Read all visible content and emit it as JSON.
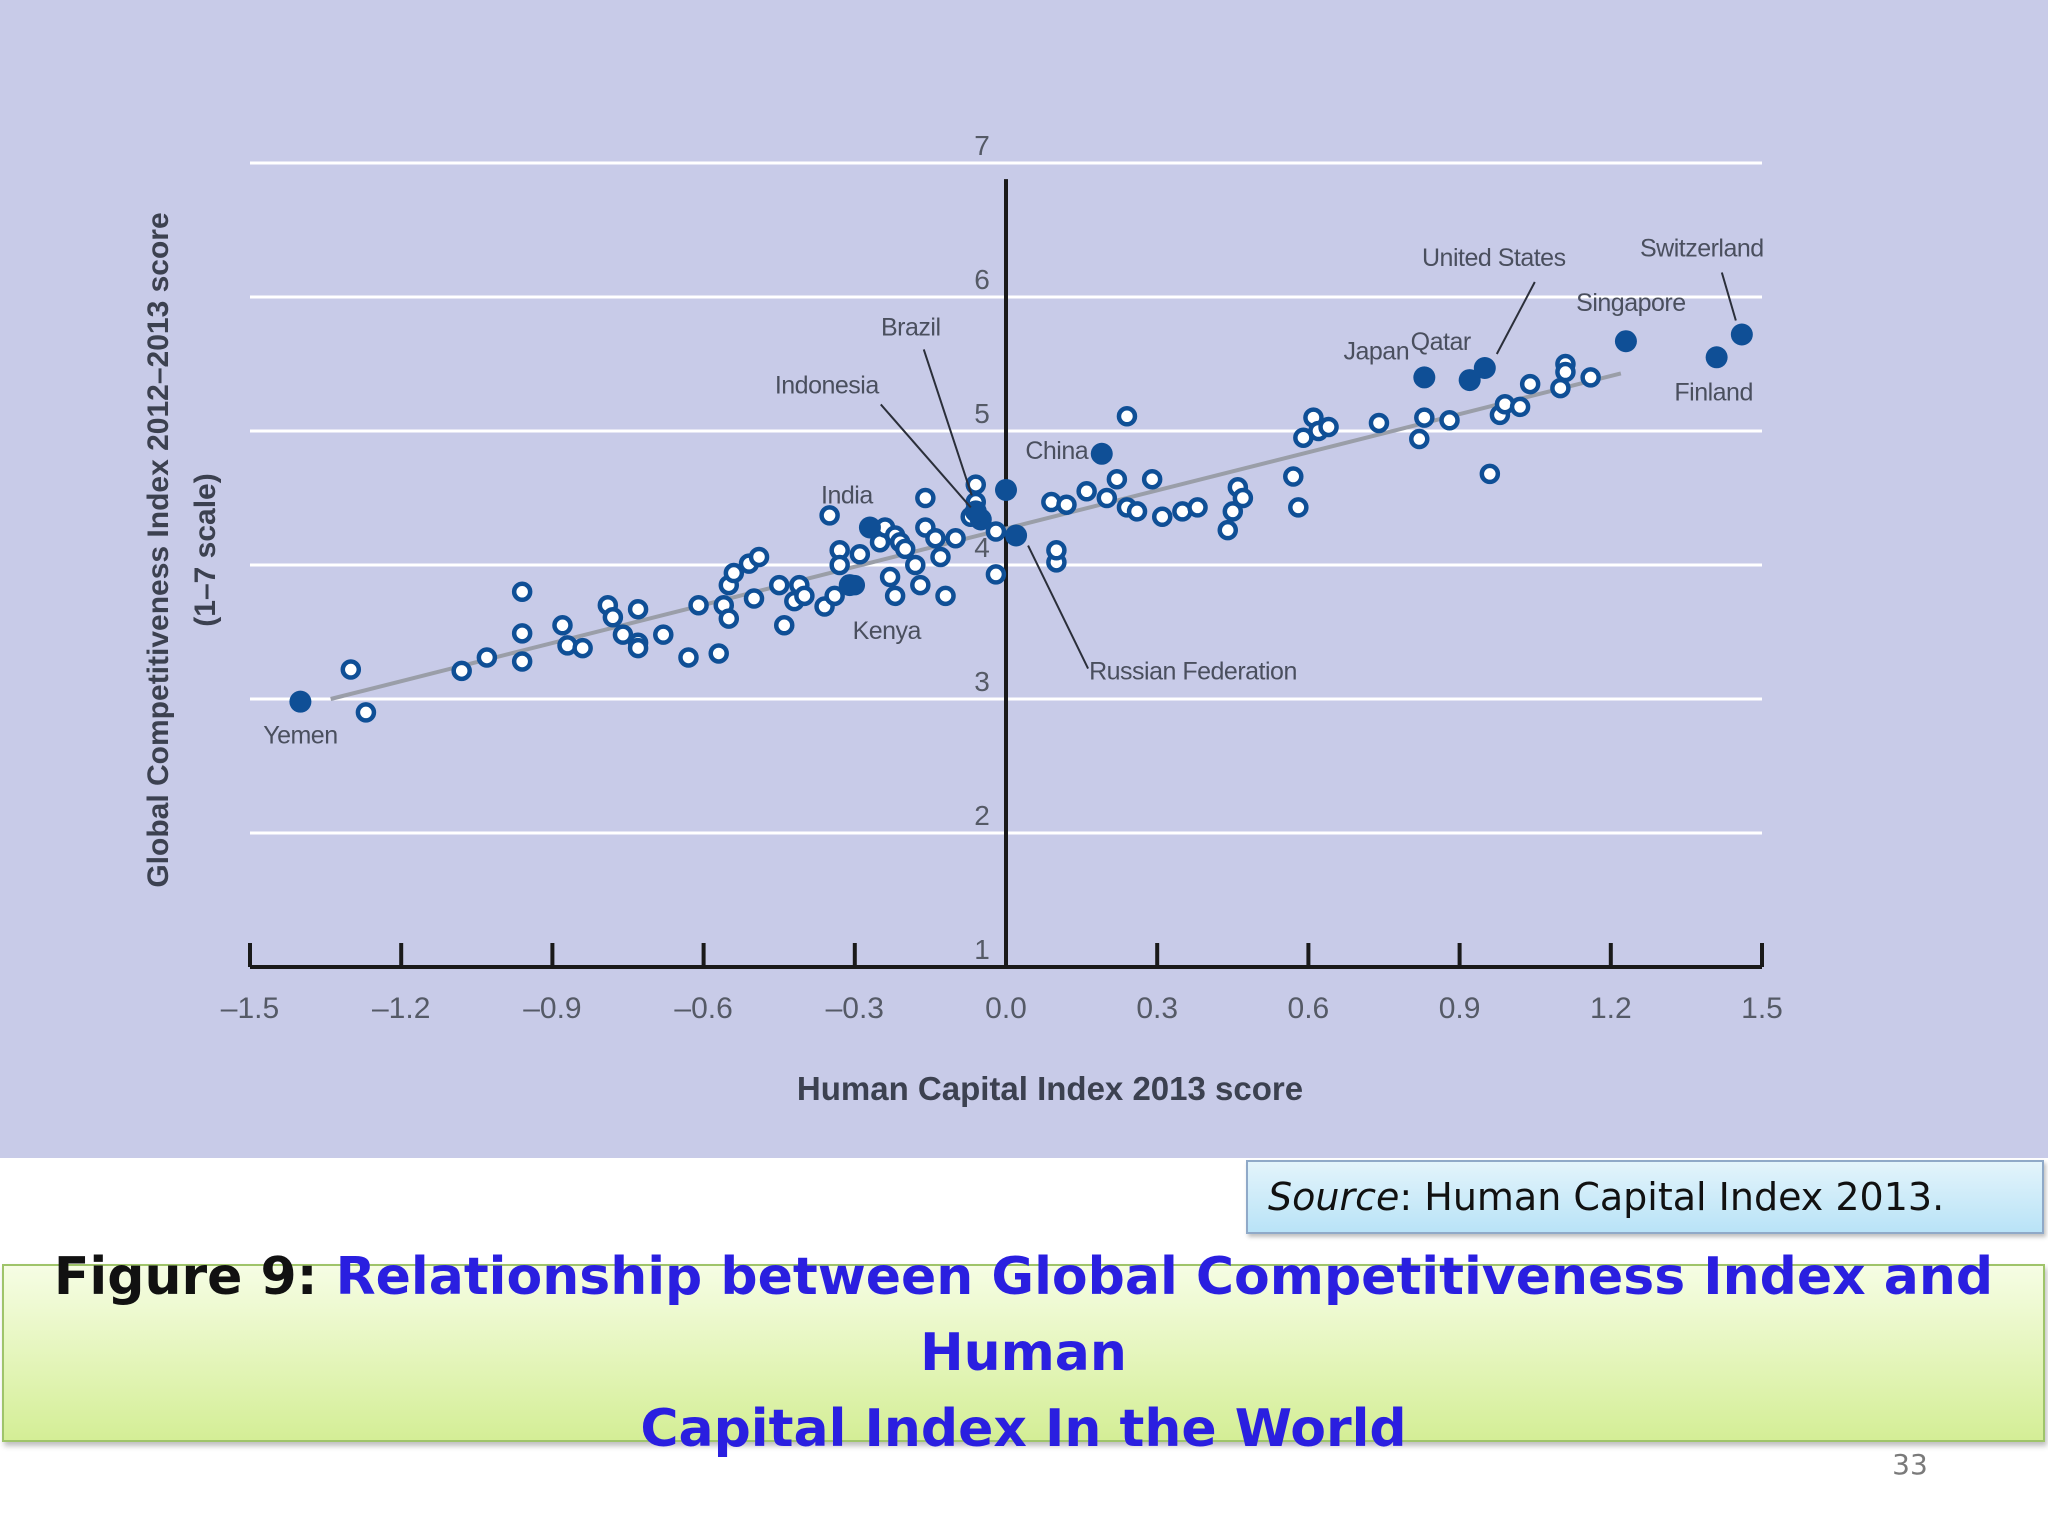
{
  "chart_data": {
    "type": "scatter",
    "title": "",
    "xlabel": "Human Capital Index 2013 score",
    "ylabel": "Global Competitiveness Index 2012–2013 score",
    "ylabel_sub": "(1–7 scale)",
    "xlim": [
      -1.5,
      1.5
    ],
    "ylim": [
      1,
      7
    ],
    "x_ticks": [
      "–1.5",
      "–1.2",
      "–0.9",
      "–0.6",
      "–0.3",
      "0.0",
      "0.3",
      "0.6",
      "0.9",
      "1.2",
      "1.5"
    ],
    "y_ticks": [
      "1",
      "2",
      "3",
      "4",
      "5",
      "6",
      "7"
    ],
    "grid": true,
    "trend_line": {
      "from": [
        -1.34,
        3.0
      ],
      "to": [
        1.22,
        5.43
      ]
    },
    "highlighted": [
      {
        "name": "Yemen",
        "x": -1.4,
        "y": 2.98
      },
      {
        "name": "India",
        "x": -0.27,
        "y": 4.28
      },
      {
        "name": "Kenya",
        "x": -0.31,
        "y": 3.85
      },
      {
        "name": "Indonesia",
        "x": -0.05,
        "y": 4.34
      },
      {
        "name": "Brazil",
        "x": -0.06,
        "y": 4.4
      },
      {
        "name": "Russian Federation",
        "x": 0.02,
        "y": 4.22
      },
      {
        "name": "",
        "x": 0.0,
        "y": 4.56
      },
      {
        "name": "China",
        "x": 0.19,
        "y": 4.83
      },
      {
        "name": "Japan",
        "x": 0.83,
        "y": 5.4
      },
      {
        "name": "Qatar",
        "x": 0.92,
        "y": 5.38
      },
      {
        "name": "United States",
        "x": 0.95,
        "y": 5.47
      },
      {
        "name": "Singapore",
        "x": 1.23,
        "y": 5.67
      },
      {
        "name": "Finland",
        "x": 1.41,
        "y": 5.55
      },
      {
        "name": "Switzerland",
        "x": 1.46,
        "y": 5.72
      }
    ],
    "others": [
      [
        -1.3,
        3.22
      ],
      [
        -1.27,
        2.9
      ],
      [
        -1.08,
        3.21
      ],
      [
        -1.03,
        3.31
      ],
      [
        -0.96,
        3.8
      ],
      [
        -0.96,
        3.49
      ],
      [
        -0.96,
        3.28
      ],
      [
        -0.88,
        3.55
      ],
      [
        -0.87,
        3.4
      ],
      [
        -0.84,
        3.38
      ],
      [
        -0.79,
        3.7
      ],
      [
        -0.78,
        3.61
      ],
      [
        -0.76,
        3.48
      ],
      [
        -0.73,
        3.67
      ],
      [
        -0.73,
        3.42
      ],
      [
        -0.73,
        3.38
      ],
      [
        -0.68,
        3.48
      ],
      [
        -0.63,
        3.31
      ],
      [
        -0.61,
        3.7
      ],
      [
        -0.57,
        3.34
      ],
      [
        -0.56,
        3.7
      ],
      [
        -0.55,
        3.85
      ],
      [
        -0.55,
        3.6
      ],
      [
        -0.54,
        3.94
      ],
      [
        -0.51,
        4.01
      ],
      [
        -0.5,
        3.75
      ],
      [
        -0.49,
        4.06
      ],
      [
        -0.45,
        3.85
      ],
      [
        -0.44,
        3.55
      ],
      [
        -0.42,
        3.73
      ],
      [
        -0.41,
        3.85
      ],
      [
        -0.4,
        3.77
      ],
      [
        -0.36,
        3.69
      ],
      [
        -0.35,
        4.37
      ],
      [
        -0.34,
        3.77
      ],
      [
        -0.33,
        4.11
      ],
      [
        -0.33,
        4.0
      ],
      [
        -0.3,
        3.85
      ],
      [
        -0.29,
        4.08
      ],
      [
        -0.25,
        4.17
      ],
      [
        -0.24,
        4.28
      ],
      [
        -0.23,
        3.91
      ],
      [
        -0.22,
        4.22
      ],
      [
        -0.21,
        4.17
      ],
      [
        -0.22,
        3.77
      ],
      [
        -0.2,
        4.12
      ],
      [
        -0.18,
        4.0
      ],
      [
        -0.17,
        3.85
      ],
      [
        -0.16,
        4.28
      ],
      [
        -0.16,
        4.5
      ],
      [
        -0.14,
        4.2
      ],
      [
        -0.13,
        4.06
      ],
      [
        -0.12,
        3.77
      ],
      [
        -0.1,
        4.2
      ],
      [
        -0.07,
        4.36
      ],
      [
        -0.06,
        4.47
      ],
      [
        -0.06,
        4.6
      ],
      [
        -0.02,
        3.93
      ],
      [
        -0.02,
        4.25
      ],
      [
        0.09,
        4.47
      ],
      [
        0.1,
        4.02
      ],
      [
        0.1,
        4.11
      ],
      [
        0.12,
        4.45
      ],
      [
        0.16,
        4.55
      ],
      [
        0.2,
        4.5
      ],
      [
        0.22,
        4.64
      ],
      [
        0.24,
        4.43
      ],
      [
        0.24,
        5.11
      ],
      [
        0.26,
        4.4
      ],
      [
        0.29,
        4.64
      ],
      [
        0.31,
        4.36
      ],
      [
        0.35,
        4.4
      ],
      [
        0.38,
        4.43
      ],
      [
        0.44,
        4.26
      ],
      [
        0.45,
        4.4
      ],
      [
        0.46,
        4.58
      ],
      [
        0.47,
        4.5
      ],
      [
        0.57,
        4.66
      ],
      [
        0.58,
        4.43
      ],
      [
        0.59,
        4.95
      ],
      [
        0.61,
        5.1
      ],
      [
        0.62,
        5.0
      ],
      [
        0.64,
        5.03
      ],
      [
        0.74,
        5.06
      ],
      [
        0.82,
        4.94
      ],
      [
        0.83,
        5.1
      ],
      [
        0.88,
        5.08
      ],
      [
        0.96,
        4.68
      ],
      [
        0.98,
        5.12
      ],
      [
        0.99,
        5.2
      ],
      [
        1.02,
        5.18
      ],
      [
        1.04,
        5.35
      ],
      [
        1.1,
        5.32
      ],
      [
        1.11,
        5.5
      ],
      [
        1.11,
        5.44
      ],
      [
        1.16,
        5.4
      ]
    ]
  },
  "source": {
    "prefix": "Source",
    "text": ": Human Capital Index 2013."
  },
  "caption": {
    "prefix": "Figure 9: ",
    "line1": "Relationship between Global Competitiveness Index and  Human",
    "line2": "Capital Index In the World"
  },
  "page_number": "33",
  "colors": {
    "background": "#c8cbe8",
    "highlight_point": "#0f4f96",
    "open_point_stroke": "#0f4f96",
    "open_point_fill": "#ffffff",
    "gridline": "#ffffff",
    "trend_line": "#9a9ea8",
    "axis": "#1a1a1a"
  }
}
